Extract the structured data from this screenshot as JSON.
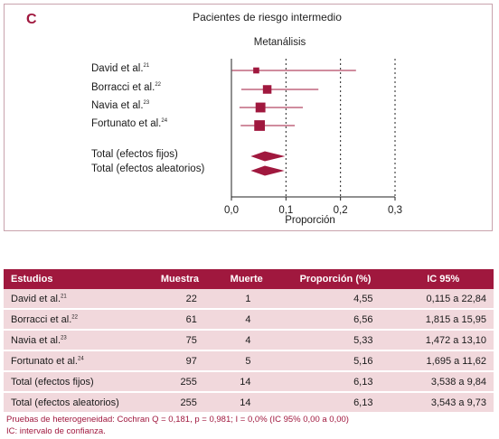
{
  "panel_letter": "C",
  "plot_title": "Pacientes de riesgo intermedio",
  "plot_subtitle": "Metanálisis",
  "chart_data": {
    "type": "forest",
    "xlabel": "Proporción",
    "xlim": [
      0.0,
      0.3
    ],
    "ticks": [
      0.0,
      0.1,
      0.2,
      0.3
    ],
    "tick_labels": [
      "0,0",
      "0,1",
      "0,2",
      "0,3"
    ],
    "studies": [
      {
        "name": "David et al.",
        "ref": "21",
        "estimate": 0.0455,
        "lower": 0.00115,
        "upper": 0.2284,
        "weight": 0.18
      },
      {
        "name": "Borracci et al.",
        "ref": "22",
        "estimate": 0.0656,
        "lower": 0.01815,
        "upper": 0.1595,
        "weight": 0.5
      },
      {
        "name": "Navia et al.",
        "ref": "23",
        "estimate": 0.0533,
        "lower": 0.01472,
        "upper": 0.131,
        "weight": 0.65
      },
      {
        "name": "Fortunato et al.",
        "ref": "24",
        "estimate": 0.0516,
        "lower": 0.01695,
        "upper": 0.1162,
        "weight": 0.75
      }
    ],
    "pooled": [
      {
        "name": "Total (efectos fijos)",
        "estimate": 0.0613,
        "lower": 0.03538,
        "upper": 0.0984
      },
      {
        "name": "Total (efectos aleatorios)",
        "estimate": 0.0613,
        "lower": 0.03543,
        "upper": 0.0973
      }
    ]
  },
  "table": {
    "headers": [
      "Estudios",
      "Muestra",
      "Muerte",
      "Proporción (%)",
      "IC 95%"
    ],
    "rows": [
      {
        "study": "David et al.",
        "ref": "21",
        "n": "22",
        "deaths": "1",
        "prop": "4,55",
        "ci": "0,115 a 22,84"
      },
      {
        "study": "Borracci et al.",
        "ref": "22",
        "n": "61",
        "deaths": "4",
        "prop": "6,56",
        "ci": "1,815 a 15,95"
      },
      {
        "study": "Navia et al.",
        "ref": "23",
        "n": "75",
        "deaths": "4",
        "prop": "5,33",
        "ci": "1,472 a 13,10"
      },
      {
        "study": "Fortunato et al.",
        "ref": "24",
        "n": "97",
        "deaths": "5",
        "prop": "5,16",
        "ci": "1,695 a 11,62"
      },
      {
        "study": "Total (efectos fijos)",
        "ref": "",
        "n": "255",
        "deaths": "14",
        "prop": "6,13",
        "ci": "3,538 a 9,84"
      },
      {
        "study": "Total (efectos aleatorios)",
        "ref": "",
        "n": "255",
        "deaths": "14",
        "prop": "6,13",
        "ci": "3,543 a 9,73"
      }
    ]
  },
  "footnotes": {
    "heterogeneity": "Pruebas de heterogeneidad: Cochran Q = 0,181, p = 0,981; I = 0,0% (IC 95% 0,00 a 0,00)",
    "ic": "IC: intervalo de confianza."
  },
  "colors": {
    "accent": "#a0183e",
    "row_bg": "#f1d8dc"
  }
}
